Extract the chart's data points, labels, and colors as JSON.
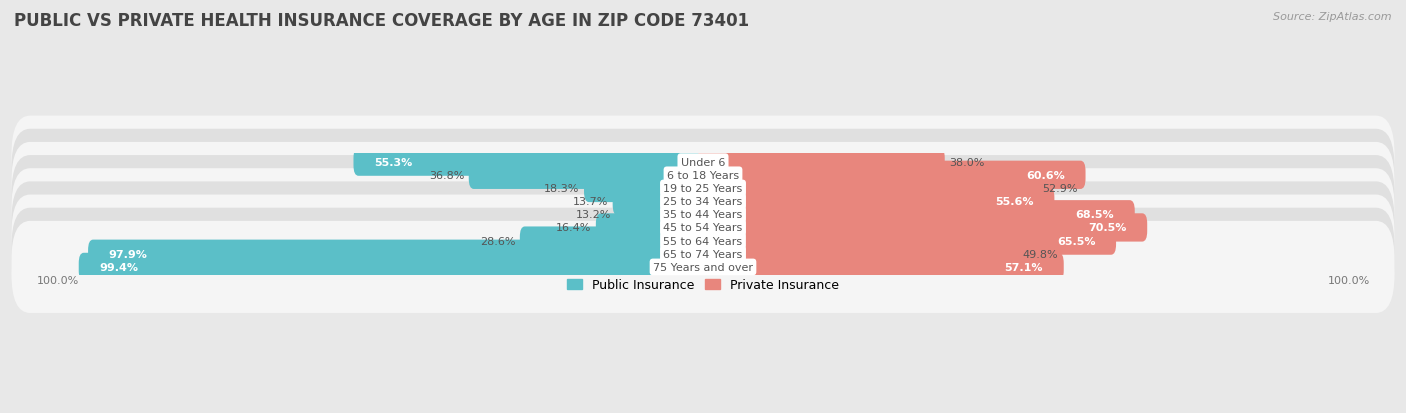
{
  "title": "PUBLIC VS PRIVATE HEALTH INSURANCE COVERAGE BY AGE IN ZIP CODE 73401",
  "source": "Source: ZipAtlas.com",
  "categories": [
    "Under 6",
    "6 to 18 Years",
    "19 to 25 Years",
    "25 to 34 Years",
    "35 to 44 Years",
    "45 to 54 Years",
    "55 to 64 Years",
    "65 to 74 Years",
    "75 Years and over"
  ],
  "public_values": [
    55.3,
    36.8,
    18.3,
    13.7,
    13.2,
    16.4,
    28.6,
    97.9,
    99.4
  ],
  "private_values": [
    38.0,
    60.6,
    52.9,
    55.6,
    68.5,
    70.5,
    65.5,
    49.8,
    57.1
  ],
  "public_color": "#5bbfc8",
  "private_color": "#e8867d",
  "bg_color": "#e8e8e8",
  "row_even_color": "#f5f5f5",
  "row_odd_color": "#e0e0e0",
  "label_dark": "#555555",
  "label_white": "#ffffff",
  "figsize": [
    14.06,
    4.14
  ],
  "dpi": 100,
  "bar_height": 0.55,
  "xlim": 100,
  "title_fontsize": 12,
  "source_fontsize": 8,
  "bar_label_fontsize": 8,
  "cat_label_fontsize": 8
}
